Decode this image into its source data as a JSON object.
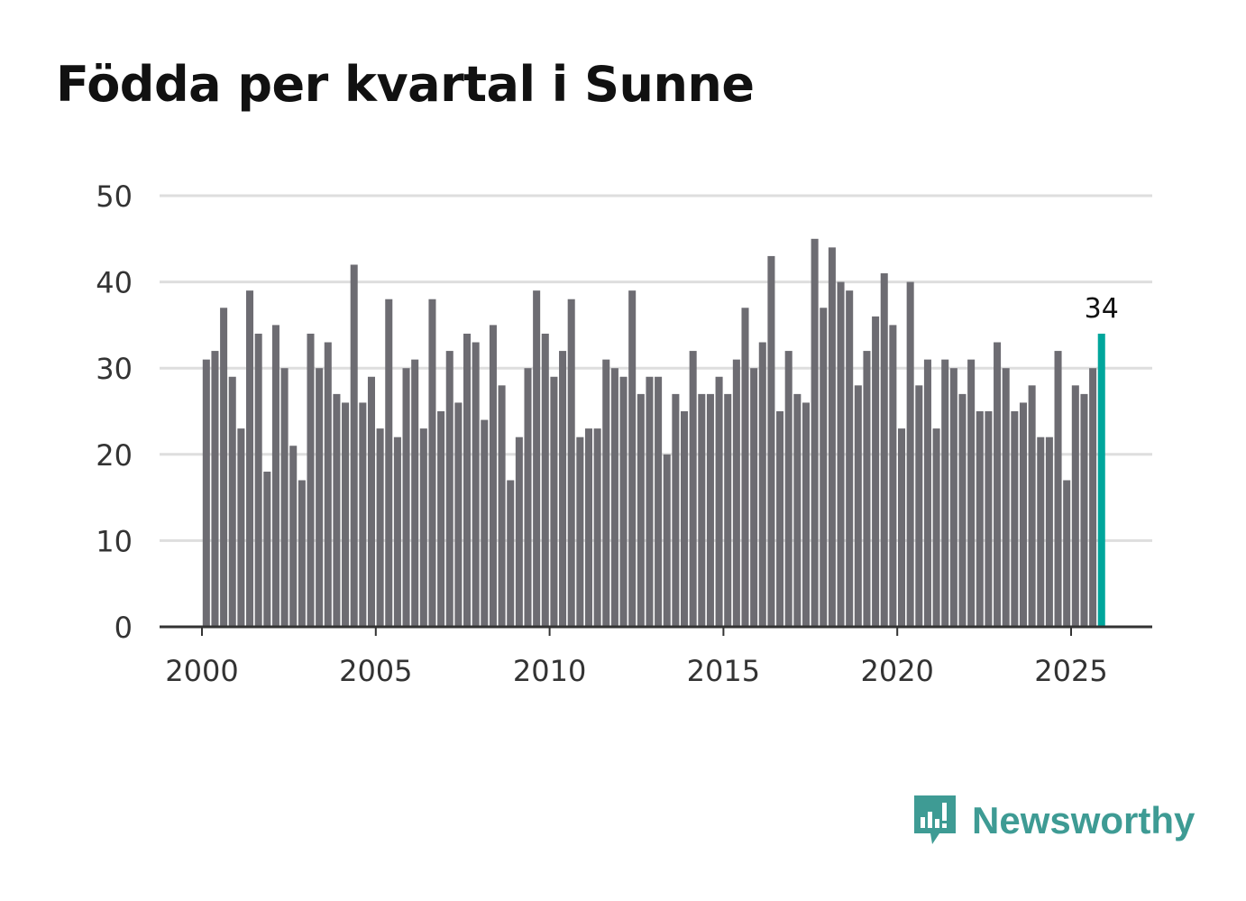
{
  "title": "Födda per kvartal i Sunne",
  "brand": "Newsworthy",
  "colors": {
    "bar": "#6d6c72",
    "highlight": "#00a69c",
    "grid": "#dedede",
    "brand": "#3e9b94"
  },
  "chart_data": {
    "type": "bar",
    "title": "Födda per kvartal i Sunne",
    "xlabel": "",
    "ylabel": "",
    "ylim": [
      0,
      50
    ],
    "yticks": [
      "0",
      "10",
      "20",
      "30",
      "40",
      "50"
    ],
    "xticks": [
      "2000",
      "2005",
      "2010",
      "2015",
      "2020",
      "2025"
    ],
    "start_year": 2000,
    "grid": true,
    "highlight_label": "34",
    "values": [
      31,
      32,
      37,
      29,
      23,
      39,
      34,
      18,
      35,
      30,
      21,
      17,
      34,
      30,
      33,
      27,
      26,
      42,
      26,
      29,
      23,
      38,
      22,
      30,
      31,
      23,
      38,
      25,
      32,
      26,
      34,
      33,
      24,
      35,
      28,
      17,
      22,
      30,
      39,
      34,
      29,
      32,
      38,
      22,
      23,
      23,
      31,
      30,
      29,
      39,
      27,
      29,
      29,
      20,
      27,
      25,
      32,
      27,
      27,
      29,
      27,
      31,
      37,
      30,
      33,
      43,
      25,
      32,
      27,
      26,
      45,
      37,
      44,
      40,
      39,
      28,
      32,
      36,
      41,
      35,
      23,
      40,
      28,
      31,
      23,
      31,
      30,
      27,
      31,
      25,
      25,
      33,
      30,
      25,
      26,
      28,
      22,
      22,
      32,
      17,
      28,
      27,
      30,
      34
    ]
  }
}
